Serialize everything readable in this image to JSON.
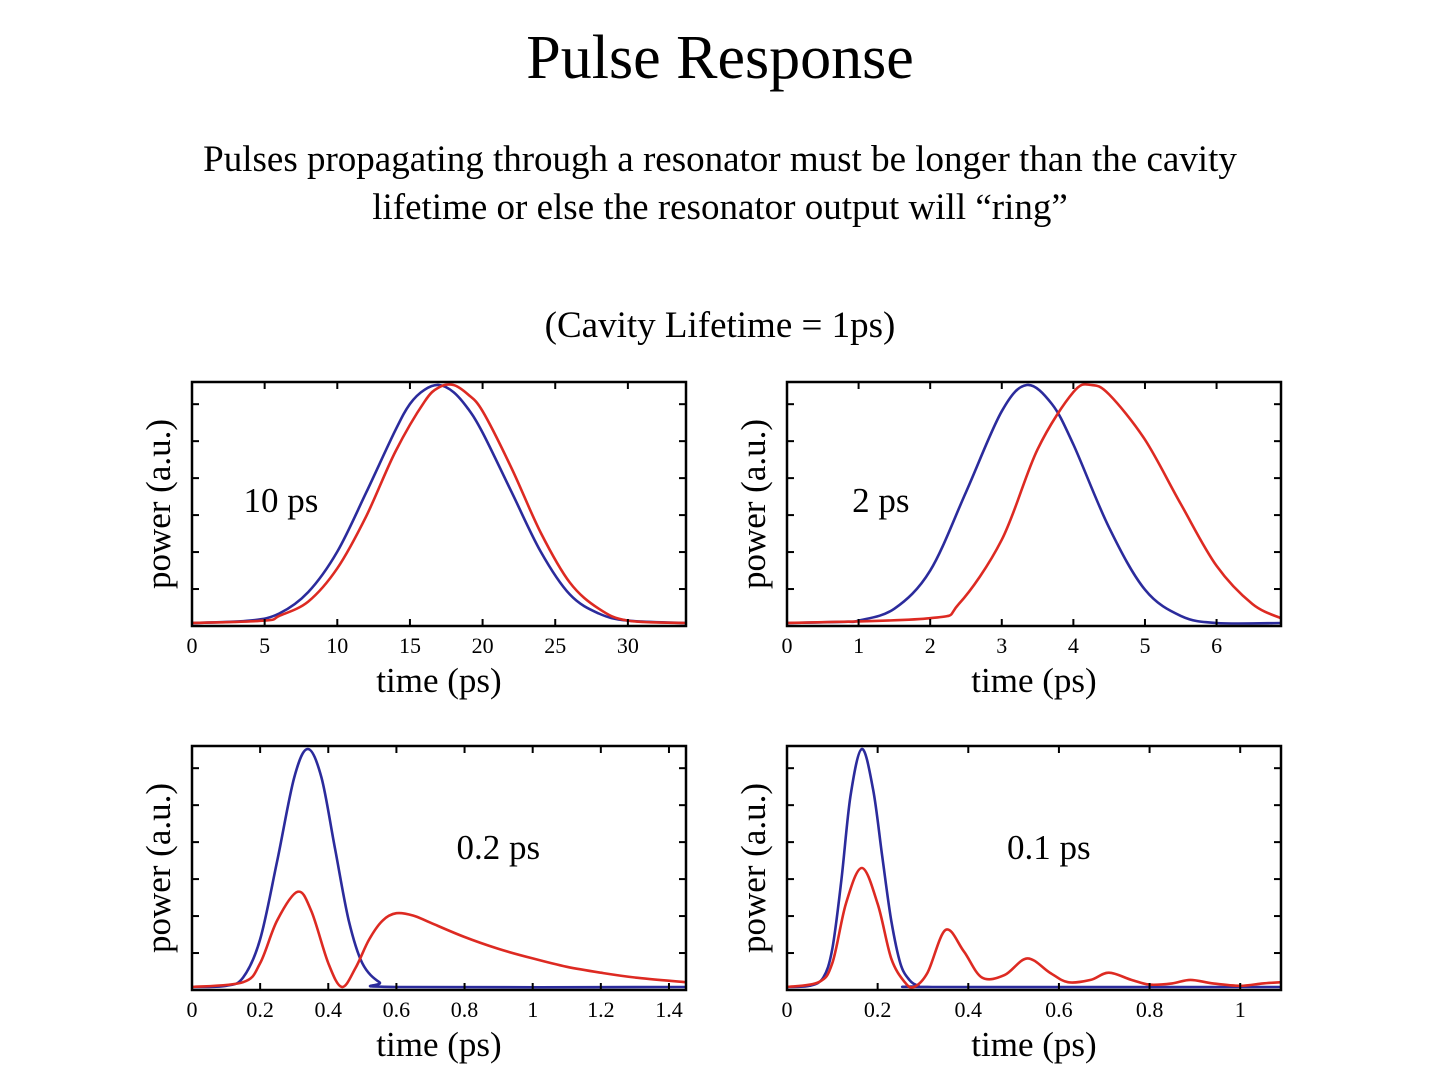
{
  "page": {
    "title": "Pulse Response",
    "subtitle_lines": [
      "Pulses propagating through a resonator must be longer than the cavity",
      "lifetime or else the resonator output will “ring”"
    ],
    "note": "(Cavity Lifetime = 1ps)"
  },
  "colors": {
    "input": "#2b2b9c",
    "output": "#dd2a22",
    "axes": "#000000"
  },
  "chart_data": [
    {
      "type": "line",
      "annotation": "10 ps",
      "xlabel": "time (ps)",
      "ylabel": "power (a.u.)",
      "xlim": [
        0,
        34
      ],
      "ylim": [
        0,
        1
      ],
      "xticks": [
        0,
        5,
        10,
        15,
        20,
        25,
        30
      ],
      "xtick_labels": [
        "0",
        "5",
        "10",
        "15",
        "20",
        "25",
        "30"
      ],
      "grid": false,
      "series": [
        {
          "x": [
            0,
            4,
            6,
            8,
            10,
            12,
            14,
            15,
            16,
            17,
            18,
            19,
            20,
            22,
            24,
            26,
            28,
            30,
            34
          ],
          "values": [
            0,
            0.01,
            0.04,
            0.13,
            0.3,
            0.55,
            0.81,
            0.92,
            0.98,
            1.0,
            0.97,
            0.9,
            0.8,
            0.55,
            0.3,
            0.12,
            0.04,
            0.01,
            0
          ]
        },
        {
          "x": [
            0,
            5,
            6,
            8,
            10,
            12,
            14,
            16,
            17,
            18,
            19,
            20,
            22,
            24,
            26,
            28,
            30,
            34
          ],
          "values": [
            0,
            0.01,
            0.03,
            0.09,
            0.23,
            0.45,
            0.72,
            0.93,
            0.99,
            1.0,
            0.96,
            0.89,
            0.65,
            0.38,
            0.17,
            0.06,
            0.01,
            0
          ]
        }
      ]
    },
    {
      "type": "line",
      "annotation": "2 ps",
      "xlabel": "time (ps)",
      "ylabel": "power (a.u.)",
      "xlim": [
        0,
        6.9
      ],
      "ylim": [
        0,
        1
      ],
      "xticks": [
        0,
        1,
        2,
        3,
        4,
        5,
        6
      ],
      "xtick_labels": [
        "0",
        "1",
        "2",
        "3",
        "4",
        "5",
        "6"
      ],
      "grid": false,
      "series": [
        {
          "x": [
            0,
            0.8,
            1.0,
            1.5,
            2.0,
            2.5,
            3.0,
            3.35,
            3.7,
            4.0,
            4.5,
            5.0,
            5.5,
            6.0,
            6.9
          ],
          "values": [
            0,
            0.005,
            0.01,
            0.06,
            0.22,
            0.55,
            0.89,
            1.0,
            0.92,
            0.75,
            0.4,
            0.14,
            0.03,
            0.0,
            0
          ]
        },
        {
          "x": [
            0,
            2.0,
            2.4,
            3.0,
            3.5,
            4.0,
            4.25,
            4.5,
            5.0,
            5.5,
            6.0,
            6.5,
            6.9
          ],
          "values": [
            0,
            0.02,
            0.08,
            0.35,
            0.73,
            0.97,
            1.0,
            0.96,
            0.77,
            0.5,
            0.24,
            0.08,
            0.02
          ]
        }
      ]
    },
    {
      "type": "line",
      "annotation": "0.2 ps",
      "xlabel": "time (ps)",
      "ylabel": "power (a.u.)",
      "xlim": [
        0,
        1.45
      ],
      "ylim": [
        0,
        1
      ],
      "xticks": [
        0,
        0.2,
        0.4,
        0.6,
        0.8,
        1,
        1.2,
        1.4
      ],
      "xtick_labels": [
        "0",
        "0.2",
        "0.4",
        "0.6",
        "0.8",
        "1",
        "1.2",
        "1.4"
      ],
      "grid": false,
      "series": [
        {
          "x": [
            0,
            0.1,
            0.15,
            0.2,
            0.25,
            0.3,
            0.34,
            0.38,
            0.42,
            0.46,
            0.5,
            0.55,
            0.6,
            1.45
          ],
          "values": [
            0,
            0.005,
            0.04,
            0.2,
            0.53,
            0.88,
            1.0,
            0.88,
            0.58,
            0.28,
            0.1,
            0.02,
            0,
            0
          ]
        },
        {
          "x": [
            0,
            0.15,
            0.2,
            0.25,
            0.31,
            0.35,
            0.4,
            0.44,
            0.48,
            0.52,
            0.56,
            0.6,
            0.65,
            0.7,
            0.8,
            0.9,
            1.0,
            1.1,
            1.2,
            1.3,
            1.45
          ],
          "values": [
            0,
            0.02,
            0.1,
            0.28,
            0.4,
            0.32,
            0.1,
            0,
            0.08,
            0.2,
            0.28,
            0.31,
            0.3,
            0.27,
            0.21,
            0.16,
            0.12,
            0.085,
            0.06,
            0.04,
            0.02
          ]
        }
      ]
    },
    {
      "type": "line",
      "annotation": "0.1 ps",
      "xlabel": "time (ps)",
      "ylabel": "power (a.u.)",
      "xlim": [
        0,
        1.09
      ],
      "ylim": [
        0,
        1
      ],
      "xticks": [
        0,
        0.2,
        0.4,
        0.6,
        0.8,
        1
      ],
      "xtick_labels": [
        "0",
        "0.2",
        "0.4",
        "0.6",
        "0.8",
        "1"
      ],
      "grid": false,
      "series": [
        {
          "x": [
            0,
            0.05,
            0.08,
            0.1,
            0.12,
            0.14,
            0.165,
            0.19,
            0.21,
            0.23,
            0.25,
            0.27,
            0.29,
            0.32,
            1.09
          ],
          "values": [
            0,
            0.005,
            0.04,
            0.16,
            0.45,
            0.8,
            1.0,
            0.83,
            0.55,
            0.28,
            0.1,
            0.03,
            0.005,
            0,
            0
          ]
        },
        {
          "x": [
            0,
            0.07,
            0.1,
            0.13,
            0.165,
            0.2,
            0.23,
            0.26,
            0.28,
            0.31,
            0.35,
            0.39,
            0.43,
            0.48,
            0.53,
            0.58,
            0.62,
            0.67,
            0.71,
            0.76,
            0.8,
            0.85,
            0.89,
            0.94,
            1.0,
            1.05,
            1.09
          ],
          "values": [
            0,
            0.02,
            0.1,
            0.35,
            0.5,
            0.35,
            0.12,
            0.02,
            0,
            0.06,
            0.24,
            0.15,
            0.04,
            0.05,
            0.12,
            0.06,
            0.02,
            0.03,
            0.06,
            0.03,
            0.01,
            0.015,
            0.03,
            0.015,
            0.005,
            0.015,
            0.02
          ]
        }
      ]
    }
  ]
}
